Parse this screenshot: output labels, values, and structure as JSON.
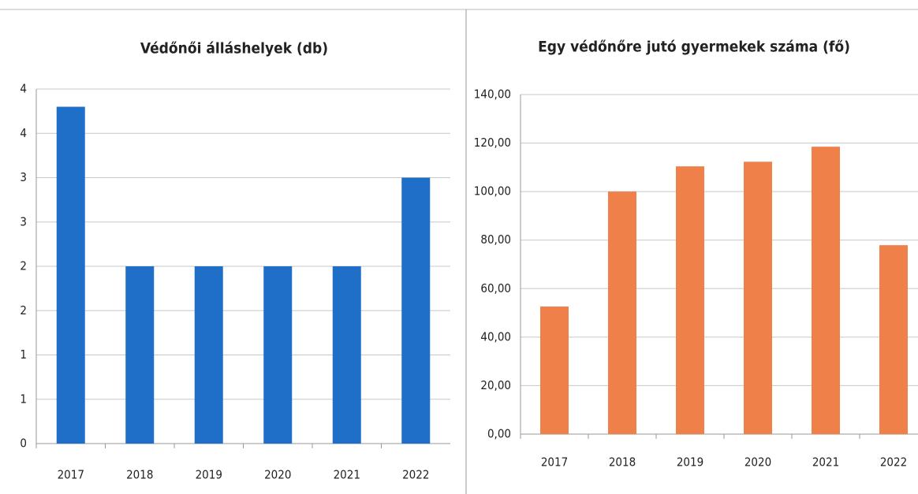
{
  "chart_data": [
    {
      "type": "bar",
      "title": "Védőnői álláshelyek (db)",
      "categories": [
        "2017",
        "2018",
        "2019",
        "2020",
        "2021",
        "2022"
      ],
      "values": [
        3.8,
        2,
        2,
        2,
        2,
        3
      ],
      "color": "#1f6fc9",
      "ylim": [
        0,
        4
      ],
      "yticks": [
        0,
        {
          "value": 0.5,
          "label": "1"
        },
        1,
        {
          "value": 1.5,
          "label": "2"
        },
        2,
        {
          "value": 2.5,
          "label": "3"
        },
        3,
        {
          "value": 3.5,
          "label": "4"
        },
        4
      ],
      "grid": true
    },
    {
      "type": "bar",
      "title": "Egy védőnőre jutó gyermekek száma (fő)",
      "categories": [
        "2017",
        "2018",
        "2019",
        "2020",
        "2021",
        "2022"
      ],
      "values": [
        52.6,
        100,
        110.4,
        112.3,
        118.5,
        77.9
      ],
      "color": "#f0804a",
      "ylim": [
        0,
        140
      ],
      "yticks": [
        {
          "value": 0,
          "label": "0,00"
        },
        {
          "value": 20,
          "label": "20,00"
        },
        {
          "value": 40,
          "label": "40,00"
        },
        {
          "value": 60,
          "label": "60,00"
        },
        {
          "value": 80,
          "label": "80,00"
        },
        {
          "value": 100,
          "label": "100,00"
        },
        {
          "value": 120,
          "label": "120,00"
        },
        {
          "value": 140,
          "label": "140,00"
        }
      ],
      "grid": true
    }
  ]
}
